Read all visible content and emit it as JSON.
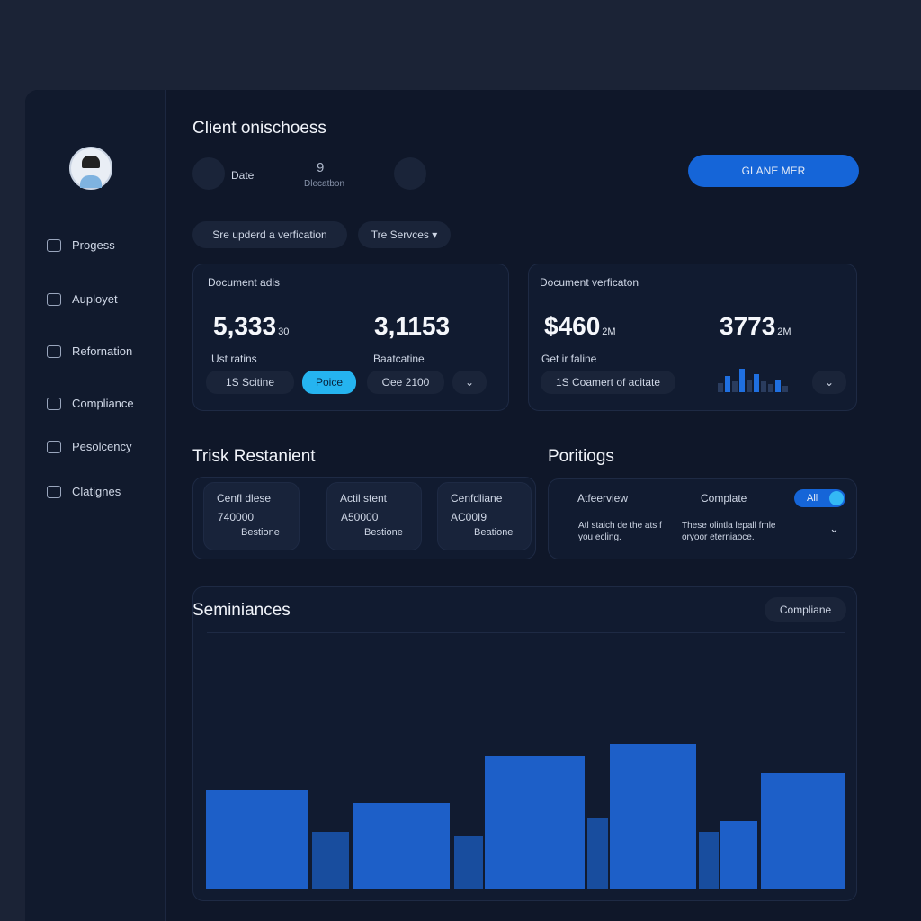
{
  "sidebar": {
    "items": [
      "Progess",
      "Auployet",
      "Refornation",
      "Compliance",
      "Pesolcency",
      "Clatignes"
    ]
  },
  "header": {
    "title": "Client onischoess",
    "date": "Date",
    "count": "9",
    "count_label": "Dlecatbon",
    "button": "GLANE MER"
  },
  "filters": [
    "Sre upderd a verfication",
    "Tre Servces"
  ],
  "cards": [
    {
      "title": "Document adis",
      "stats": [
        {
          "value": "5,333",
          "suffix": "30",
          "label": "Ust ratins"
        },
        {
          "value": "3,1153",
          "label": "Baatcatine"
        }
      ],
      "chips": [
        "1S Scitine",
        "Poice",
        "Oee 2100"
      ]
    },
    {
      "title": "Document verficaton",
      "stats": [
        {
          "value": "$460",
          "suffix": "2M",
          "label": "Get ir faline"
        },
        {
          "value": "3773",
          "suffix": "2M"
        }
      ],
      "chips": [
        "1S Coamert of acitate"
      ]
    }
  ],
  "risk": {
    "title": "Trisk Restanient",
    "items": [
      {
        "title": "Cenfl dlese",
        "value": "740000",
        "tag": "Bestione"
      },
      {
        "title": "Actil stent",
        "value": "A50000",
        "tag": "Bestione"
      },
      {
        "title": "Cenfdliane",
        "value": "AC00I9",
        "tag": "Beatione"
      }
    ]
  },
  "portfolio": {
    "title": "Poritiogs",
    "tabs": [
      "Atfeerview",
      "Complate"
    ],
    "toggle": "All",
    "notes": [
      "Atl staich de the ats f you ecling.",
      "These olintla lepall fmle oryoor eterniaoce."
    ]
  },
  "summary": {
    "title": "Seminiances",
    "filter": "Compliane"
  }
}
